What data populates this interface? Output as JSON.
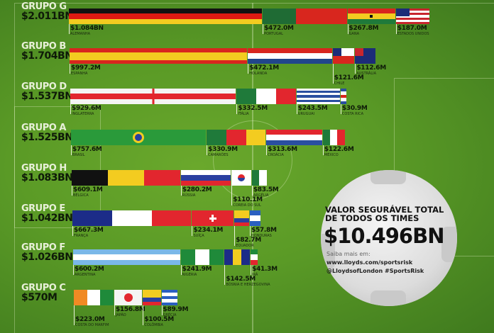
{
  "chart_data": {
    "type": "bar",
    "orientation": "horizontal-stacked",
    "unit": "USD millions",
    "groups": [
      {
        "label": "GRUPO G",
        "total": "$2.011BN",
        "teams": [
          {
            "name": "ALEMANHA",
            "value_label": "$1.084BN",
            "value": 1084,
            "flag": {
              "dir": "h",
              "colors": [
                "#111111",
                "#dd1a12",
                "#f3cc20"
              ]
            }
          },
          {
            "name": "PORTUGAL",
            "value_label": "$472.0M",
            "value": 472.0,
            "flag": {
              "dir": "v",
              "colors": [
                "#1f6b34",
                "#1f6b34",
                "#d8261e",
                "#d8261e",
                "#d8261e"
              ]
            }
          },
          {
            "name": "GANA",
            "value_label": "$267.8M",
            "value": 267.8,
            "flag": {
              "dir": "h",
              "colors": [
                "#d8261e",
                "#f3cc20",
                "#1f7a3a"
              ]
            }
          },
          {
            "name": "ESTADOS UNIDOS",
            "value_label": "$187.0M",
            "value": 187.0,
            "flag": {
              "dir": "h",
              "colors": [
                "#c8262e",
                "#ffffff",
                "#c8262e",
                "#ffffff",
                "#c8262e",
                "#ffffff",
                "#c8262e"
              ]
            }
          }
        ]
      },
      {
        "label": "GRUPO B",
        "total": "$1.704BN",
        "teams": [
          {
            "name": "ESPANHA",
            "value_label": "$997.2M",
            "value": 997.2,
            "flag": {
              "dir": "h",
              "colors": [
                "#d8261e",
                "#f3cc20",
                "#f3cc20",
                "#d8261e"
              ]
            }
          },
          {
            "name": "HOLANDA",
            "value_label": "$472.1M",
            "value": 472.1,
            "flag": {
              "dir": "h",
              "colors": [
                "#d8261e",
                "#ffffff",
                "#21468b"
              ]
            }
          },
          {
            "name": "CHILE",
            "value_label": "$121.6M",
            "value": 121.6,
            "flag": {
              "dir": "h",
              "colors": [
                "#ffffff",
                "#d8261e"
              ]
            }
          },
          {
            "name": "AUSTRÁLIA",
            "value_label": "$112.6M",
            "value": 112.6,
            "flag": {
              "dir": "h",
              "colors": [
                "#1c2c78"
              ]
            }
          }
        ]
      },
      {
        "label": "GRUPO D",
        "total": "$1.537BN",
        "teams": [
          {
            "name": "INGLATERRA",
            "value_label": "$929.6M",
            "value": 929.6,
            "flag": {
              "dir": "h",
              "colors": [
                "#f4f4f4",
                "#e2262e",
                "#f4f4f4"
              ]
            }
          },
          {
            "name": "ITÁLIA",
            "value_label": "$332.5M",
            "value": 332.5,
            "flag": {
              "dir": "v",
              "colors": [
                "#1f7a3a",
                "#ffffff",
                "#e2262e"
              ]
            }
          },
          {
            "name": "URUGUAI",
            "value_label": "$243.5M",
            "value": 243.5,
            "flag": {
              "dir": "h",
              "colors": [
                "#ffffff",
                "#2a4fa0",
                "#ffffff",
                "#2a4fa0",
                "#ffffff",
                "#2a4fa0",
                "#ffffff"
              ]
            }
          },
          {
            "name": "COSTA RICA",
            "value_label": "$30.9M",
            "value": 30.9,
            "flag": {
              "dir": "h",
              "colors": [
                "#2a4fa0",
                "#ffffff",
                "#d8261e",
                "#ffffff",
                "#2a4fa0"
              ]
            }
          }
        ]
      },
      {
        "label": "GRUPO A",
        "total": "$1.525BN",
        "teams": [
          {
            "name": "BRASIL",
            "value_label": "$757.6M",
            "value": 757.6,
            "flag": {
              "dir": "h",
              "colors": [
                "#2a9a3a"
              ]
            }
          },
          {
            "name": "CAMARÕES",
            "value_label": "$330.9M",
            "value": 330.9,
            "flag": {
              "dir": "v",
              "colors": [
                "#1f7a3a",
                "#e2262e",
                "#f3cc20"
              ]
            }
          },
          {
            "name": "CROÁCIA",
            "value_label": "$313.6M",
            "value": 313.6,
            "flag": {
              "dir": "h",
              "colors": [
                "#e2262e",
                "#ffffff",
                "#2a4fa0"
              ]
            }
          },
          {
            "name": "MÉXICO",
            "value_label": "$122.6M",
            "value": 122.6,
            "flag": {
              "dir": "v",
              "colors": [
                "#1f7a3a",
                "#ffffff",
                "#e2262e"
              ]
            }
          }
        ]
      },
      {
        "label": "GRUPO H",
        "total": "$1.083BN",
        "teams": [
          {
            "name": "BÉLGICA",
            "value_label": "$609.1M",
            "value": 609.1,
            "flag": {
              "dir": "v",
              "colors": [
                "#111111",
                "#f3cc20",
                "#e2262e"
              ]
            }
          },
          {
            "name": "RÚSSIA",
            "value_label": "$280.2M",
            "value": 280.2,
            "flag": {
              "dir": "h",
              "colors": [
                "#ffffff",
                "#2a3fa0",
                "#e2262e"
              ]
            }
          },
          {
            "name": "COREIA DO SUL",
            "value_label": "$110.1M",
            "value": 110.1,
            "flag": {
              "dir": "h",
              "colors": [
                "#ffffff"
              ]
            }
          },
          {
            "name": "ARGÉLIA",
            "value_label": "$83.5M",
            "value": 83.5,
            "flag": {
              "dir": "v",
              "colors": [
                "#1f7a3a",
                "#ffffff"
              ]
            }
          }
        ]
      },
      {
        "label": "GRUPO E",
        "total": "$1.042BN",
        "teams": [
          {
            "name": "FRANÇA",
            "value_label": "$667.3M",
            "value": 667.3,
            "flag": {
              "dir": "v",
              "colors": [
                "#1c2c88",
                "#ffffff",
                "#e2262e"
              ]
            }
          },
          {
            "name": "SUÍÇA",
            "value_label": "$234.1M",
            "value": 234.1,
            "flag": {
              "dir": "h",
              "colors": [
                "#e2262e"
              ]
            }
          },
          {
            "name": "EQUADOR",
            "value_label": "$82.7M",
            "value": 82.7,
            "flag": {
              "dir": "h",
              "colors": [
                "#f3cc20",
                "#f3cc20",
                "#2a3fa0",
                "#e2262e"
              ]
            }
          },
          {
            "name": "HONDURAS",
            "value_label": "$57.8M",
            "value": 57.8,
            "flag": {
              "dir": "h",
              "colors": [
                "#2a5fc0",
                "#ffffff",
                "#2a5fc0"
              ]
            }
          }
        ]
      },
      {
        "label": "GRUPO F",
        "total": "$1.026BN",
        "teams": [
          {
            "name": "ARGENTINA",
            "value_label": "$600.2M",
            "value": 600.2,
            "flag": {
              "dir": "h",
              "colors": [
                "#7ab8e8",
                "#ffffff",
                "#7ab8e8"
              ]
            }
          },
          {
            "name": "NIGÉRIA",
            "value_label": "$241.9M",
            "value": 241.9,
            "flag": {
              "dir": "v",
              "colors": [
                "#1f8a3a",
                "#ffffff",
                "#1f8a3a"
              ]
            }
          },
          {
            "name": "BÓSNIA E HERZEGOVINA",
            "value_label": "$142.5M",
            "value": 142.5,
            "flag": {
              "dir": "v",
              "colors": [
                "#1c2c88",
                "#f3cc20",
                "#1c2c88"
              ]
            }
          },
          {
            "name": "IRÃ",
            "value_label": "$41.3M",
            "value": 41.3,
            "flag": {
              "dir": "h",
              "colors": [
                "#1f8a3a",
                "#ffffff",
                "#e2262e"
              ]
            }
          }
        ]
      },
      {
        "label": "GRUPO C",
        "total": "$570M",
        "teams": [
          {
            "name": "COSTA DO MARFIM",
            "value_label": "$223.0M",
            "value": 223.0,
            "flag": {
              "dir": "v",
              "colors": [
                "#f08a24",
                "#ffffff",
                "#1f8a3a"
              ]
            }
          },
          {
            "name": "JAPÃO",
            "value_label": "$156.8M",
            "value": 156.8,
            "flag": {
              "dir": "h",
              "colors": [
                "#f4f4f4"
              ]
            }
          },
          {
            "name": "COLÔMBIA",
            "value_label": "$100.5M",
            "value": 100.5,
            "flag": {
              "dir": "h",
              "colors": [
                "#f3cc20",
                "#f3cc20",
                "#2a3fa0",
                "#e2262e"
              ]
            }
          },
          {
            "name": "GRÉCIA",
            "value_label": "$89.9M",
            "value": 89.9,
            "flag": {
              "dir": "h",
              "colors": [
                "#2a5fc0",
                "#ffffff",
                "#2a5fc0",
                "#ffffff",
                "#2a5fc0"
              ]
            }
          }
        ]
      }
    ]
  },
  "summary": {
    "heading": "VALOR SEGURÁVEL TOTAL DE TODOS OS TIMES",
    "total": "$10.496BN",
    "more_label": "Saiba mais em:",
    "url": "www.lloyds.com/sportsrisk",
    "social": "@LloydsofLondon #SportsRisk"
  }
}
